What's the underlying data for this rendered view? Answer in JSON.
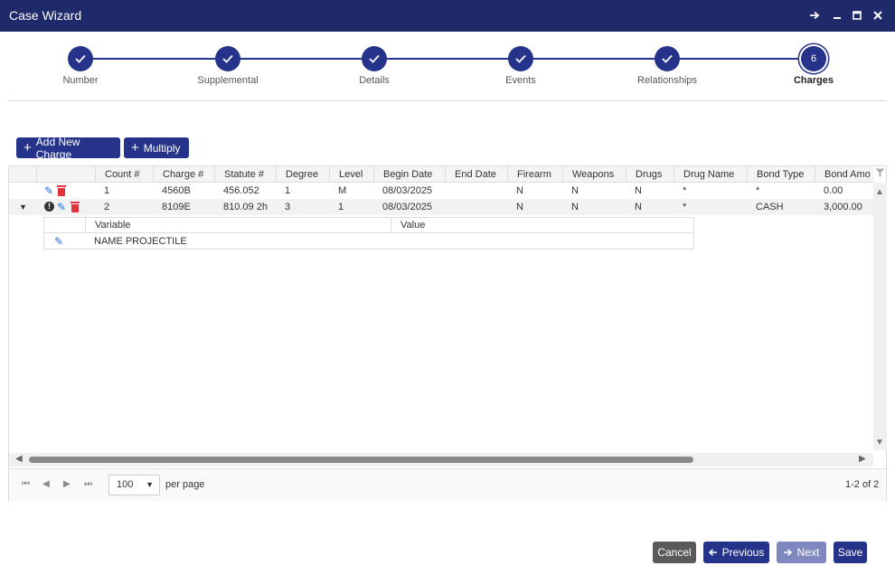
{
  "window": {
    "title": "Case Wizard",
    "controls": {
      "pin": "pin-icon",
      "minimize": "–",
      "maximize": "☐",
      "close": "✕"
    }
  },
  "steps": [
    {
      "label": "Number",
      "state": "done"
    },
    {
      "label": "Supplemental",
      "state": "done"
    },
    {
      "label": "Details",
      "state": "done"
    },
    {
      "label": "Events",
      "state": "done"
    },
    {
      "label": "Relationships",
      "state": "done"
    },
    {
      "label": "Charges",
      "state": "active",
      "number": "6"
    }
  ],
  "toolbar": {
    "add_label": "Add New Charge",
    "multiply_label": "Multiply"
  },
  "grid": {
    "columns": [
      "Count #",
      "Charge #",
      "Statute #",
      "Degree",
      "Level",
      "Begin Date",
      "End Date",
      "Firearm",
      "Weapons",
      "Drugs",
      "Drug Name",
      "Bond Type",
      "Bond Amo"
    ],
    "rows": [
      {
        "count": "1",
        "charge": "4560B",
        "statute": "456.052",
        "degree": "1",
        "level": "M",
        "begin": "08/03/2025",
        "end": "",
        "firearm": "N",
        "weapons": "N",
        "drugs": "N",
        "drug_name": "*",
        "bond_type": "*",
        "bond_amount": "0.00"
      },
      {
        "count": "2",
        "charge": "8109E",
        "statute": "810.09 2h",
        "degree": "3",
        "level": "1",
        "begin": "08/03/2025",
        "end": "",
        "firearm": "N",
        "weapons": "N",
        "drugs": "N",
        "drug_name": "*",
        "bond_type": "CASH",
        "bond_amount": "3,000.00"
      }
    ],
    "detail": {
      "columns": [
        "Variable",
        "Value"
      ],
      "rows": [
        {
          "variable": "NAME PROJECTILE",
          "value": ""
        }
      ]
    }
  },
  "pager": {
    "page_size": "100",
    "per_page_label": "per page",
    "range": "1-2 of 2"
  },
  "footer": {
    "cancel": "Cancel",
    "previous": "Previous",
    "next": "Next",
    "save": "Save"
  },
  "colors": {
    "primary": "#26338a",
    "titlebar": "#1f2a6b",
    "cancel": "#5a5a5a",
    "disabled": "#8088c0",
    "delete": "#e0323a",
    "edit": "#1e6fd9"
  }
}
